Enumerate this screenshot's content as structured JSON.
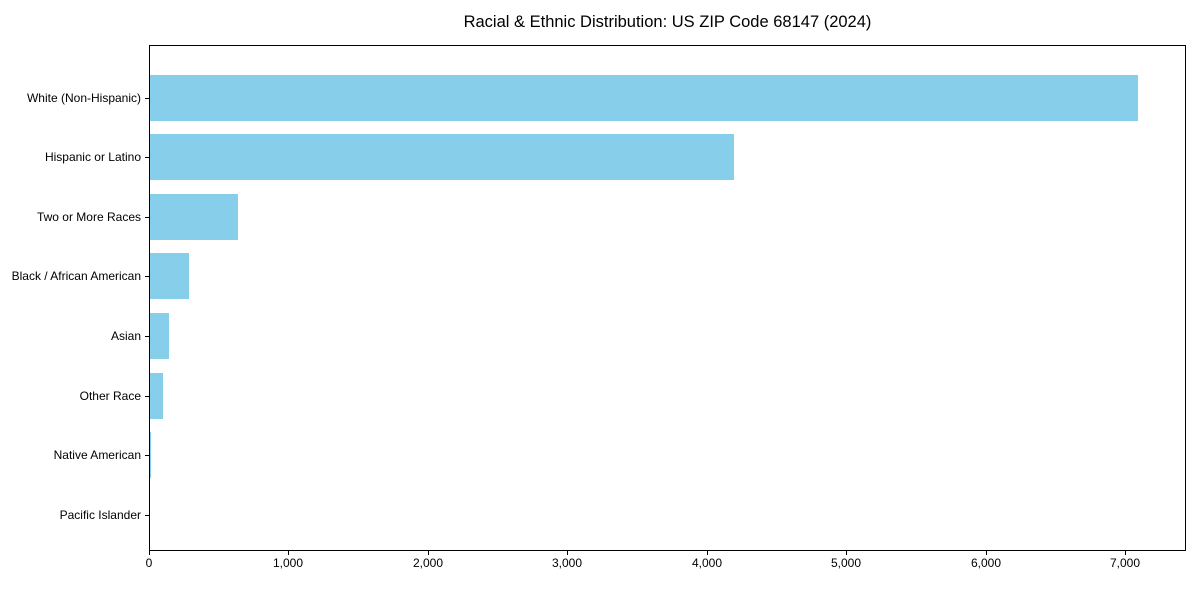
{
  "figure": {
    "title": "Racial & Ethnic Distribution: US ZIP Code 68147 (2024)"
  },
  "colors": {
    "bar": "#87CEEB",
    "axis": "#000000",
    "text": "#000000",
    "background": "#FFFFFF"
  },
  "chart_data": {
    "type": "bar",
    "orientation": "horizontal",
    "title": "Racial & Ethnic Distribution: US ZIP Code 68147 (2024)",
    "categories": [
      "White (Non-Hispanic)",
      "Hispanic or Latino",
      "Two or More Races",
      "Black / African American",
      "Asian",
      "Other Race",
      "Native American",
      "Pacific Islander"
    ],
    "values": [
      7082,
      4186,
      632,
      278,
      139,
      93,
      8,
      2
    ],
    "xlabel": "",
    "ylabel": "",
    "xlim": [
      0,
      7436
    ],
    "xticks": [
      0,
      1000,
      2000,
      3000,
      4000,
      5000,
      6000,
      7000
    ],
    "xtick_labels": [
      "0",
      "1,000",
      "2,000",
      "3,000",
      "4,000",
      "5,000",
      "6,000",
      "7,000"
    ],
    "grid": false,
    "legend": "none",
    "bar_color": "#87CEEB"
  }
}
